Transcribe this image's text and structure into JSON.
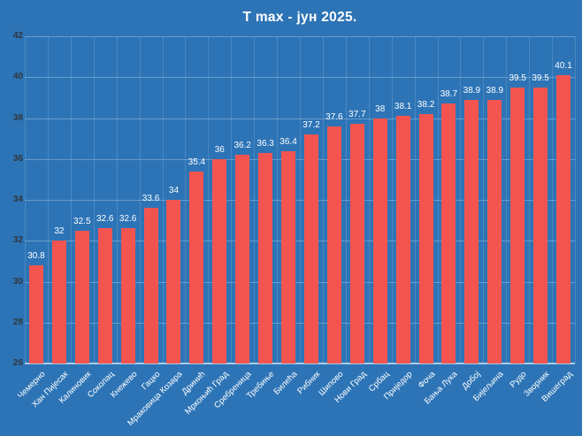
{
  "colors": {
    "background": "#2D74B6",
    "bar": "#F4544F",
    "title_text": "#FFFFFF",
    "value_label_text": "#FFFFFF",
    "x_label_text": "#FFFFFF",
    "y_tick_text": "#30363C",
    "h_gridline": "rgba(255,255,255,0.28)",
    "v_gridline": "rgba(255,255,255,0.14)",
    "axis_line": "#A9CCEA"
  },
  "chart_data": {
    "type": "bar",
    "title": "T max - јун 2025.",
    "xlabel": "",
    "ylabel": "",
    "ylim": [
      26,
      42
    ],
    "yticks": [
      26,
      28,
      30,
      32,
      34,
      36,
      38,
      40,
      42
    ],
    "grid": true,
    "legend": false,
    "categories": [
      "Чемерно",
      "Хан Пијесак",
      "Калиновик",
      "Соколац",
      "Кнежево",
      "Гацко",
      "Мраковица Козара",
      "Дринић",
      "Мркоњић Град",
      "Сребреница",
      "Требиње",
      "Билећа",
      "Рибник",
      "Шипово",
      "Нови Град",
      "Србац",
      "Приједор",
      "Фоча",
      "Бања Лука",
      "Добој",
      "Бијељина",
      "Рудо",
      "Зворник",
      "Вишеград"
    ],
    "values": [
      30.8,
      32,
      32.5,
      32.6,
      32.6,
      33.6,
      34,
      35.4,
      36,
      36.2,
      36.3,
      36.4,
      37.2,
      37.6,
      37.7,
      38,
      38.1,
      38.2,
      38.7,
      38.9,
      38.9,
      39.5,
      39.5,
      40.1
    ],
    "value_labels": [
      "30.8",
      "32",
      "32.5",
      "32.6",
      "32.6",
      "33.6",
      "34",
      "35.4",
      "36",
      "36.2",
      "36.3",
      "36.4",
      "37.2",
      "37.6",
      "37.7",
      "38",
      "38.1",
      "38.2",
      "38.7",
      "38.9",
      "38.9",
      "39.5",
      "39.5",
      "40.1"
    ]
  }
}
